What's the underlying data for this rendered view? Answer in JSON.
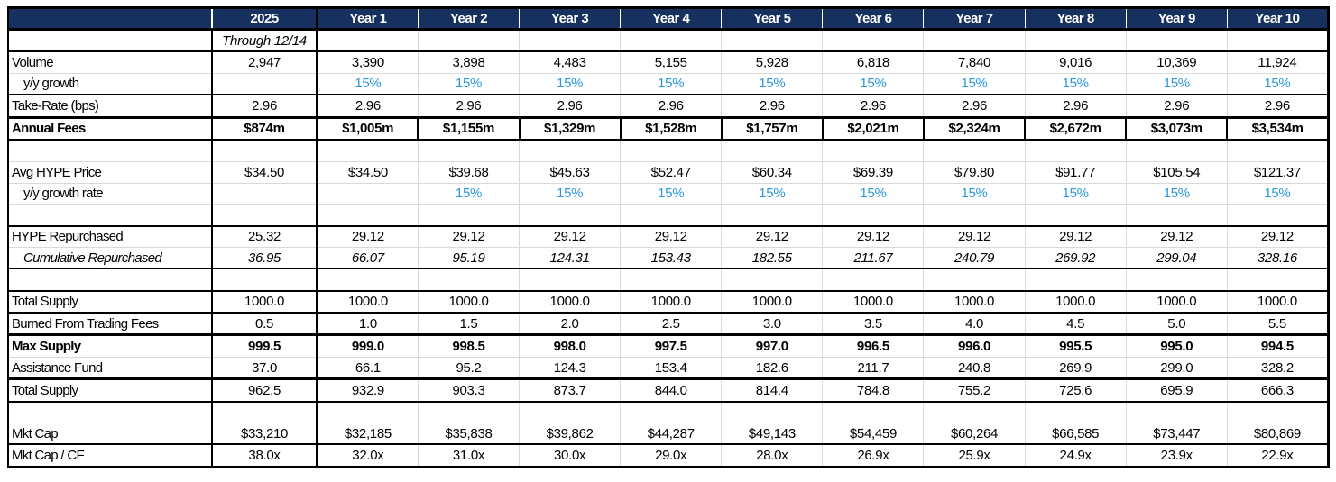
{
  "colors": {
    "header_bg": "#16305F",
    "header_text": "#FFFFFF",
    "growth_text": "#2B97E0",
    "grid_line": "#D9D9D9",
    "border": "#000000"
  },
  "table": {
    "header": [
      "",
      "2025",
      "Year 1",
      "Year 2",
      "Year 3",
      "Year 4",
      "Year 5",
      "Year 6",
      "Year 7",
      "Year 8",
      "Year 9",
      "Year 10"
    ],
    "rows": [
      {
        "name": "period-note",
        "label": "",
        "italic": true,
        "border_top": "thick",
        "values": [
          "Through 12/14",
          "",
          "",
          "",
          "",
          "",
          "",
          "",
          "",
          "",
          ""
        ]
      },
      {
        "name": "volume",
        "label": "Volume",
        "border_top": "thin",
        "values": [
          "2,947",
          "3,390",
          "3,898",
          "4,483",
          "5,155",
          "5,928",
          "6,818",
          "7,840",
          "9,016",
          "10,369",
          "11,924"
        ]
      },
      {
        "name": "yy-growth",
        "label": "y/y growth",
        "indent": true,
        "blue": true,
        "border_top": "gray",
        "values": [
          "",
          "15%",
          "15%",
          "15%",
          "15%",
          "15%",
          "15%",
          "15%",
          "15%",
          "15%",
          "15%"
        ]
      },
      {
        "name": "take-rate",
        "label": "Take-Rate (bps)",
        "border_top": "thin",
        "values": [
          "2.96",
          "2.96",
          "2.96",
          "2.96",
          "2.96",
          "2.96",
          "2.96",
          "2.96",
          "2.96",
          "2.96",
          "2.96"
        ]
      },
      {
        "name": "annual-fees",
        "label": "Annual Fees",
        "bold": true,
        "boxed": true,
        "border_top": "thick",
        "values": [
          "$874m",
          "$1,005m",
          "$1,155m",
          "$1,329m",
          "$1,528m",
          "$1,757m",
          "$2,021m",
          "$2,324m",
          "$2,672m",
          "$3,073m",
          "$3,534m"
        ]
      },
      {
        "name": "spacer-1",
        "label": "",
        "border_top": "thick",
        "values": [
          "",
          "",
          "",
          "",
          "",
          "",
          "",
          "",
          "",
          "",
          ""
        ]
      },
      {
        "name": "avg-hype-price",
        "label": "Avg HYPE Price",
        "border_top": "gray",
        "values": [
          "$34.50",
          "$34.50",
          "$39.68",
          "$45.63",
          "$52.47",
          "$60.34",
          "$69.39",
          "$79.80",
          "$91.77",
          "$105.54",
          "$121.37"
        ]
      },
      {
        "name": "yy-growth-rate",
        "label": "y/y growth rate",
        "indent": true,
        "blue": true,
        "border_top": "gray",
        "values": [
          "",
          "",
          "15%",
          "15%",
          "15%",
          "15%",
          "15%",
          "15%",
          "15%",
          "15%",
          "15%"
        ]
      },
      {
        "name": "spacer-2",
        "label": "",
        "border_top": "gray",
        "values": [
          "",
          "",
          "",
          "",
          "",
          "",
          "",
          "",
          "",
          "",
          ""
        ]
      },
      {
        "name": "hype-repurchased",
        "label": "HYPE Repurchased",
        "border_top": "thin",
        "values": [
          "25.32",
          "29.12",
          "29.12",
          "29.12",
          "29.12",
          "29.12",
          "29.12",
          "29.12",
          "29.12",
          "29.12",
          "29.12"
        ]
      },
      {
        "name": "cumulative-repurchased",
        "label": "Cumulative Repurchased",
        "indent": true,
        "italic": true,
        "italic_label": true,
        "border_top": "gray",
        "values": [
          "36.95",
          "66.07",
          "95.19",
          "124.31",
          "153.43",
          "182.55",
          "211.67",
          "240.79",
          "269.92",
          "299.04",
          "328.16"
        ]
      },
      {
        "name": "spacer-3",
        "label": "",
        "border_top": "thin",
        "values": [
          "",
          "",
          "",
          "",
          "",
          "",
          "",
          "",
          "",
          "",
          ""
        ]
      },
      {
        "name": "total-supply",
        "label": "Total Supply",
        "border_top": "thin",
        "values": [
          "1000.0",
          "1000.0",
          "1000.0",
          "1000.0",
          "1000.0",
          "1000.0",
          "1000.0",
          "1000.0",
          "1000.0",
          "1000.0",
          "1000.0"
        ]
      },
      {
        "name": "burned-from-trading-fees",
        "label": "Burned From Trading Fees",
        "border_top": "thin",
        "values": [
          "0.5",
          "1.0",
          "1.5",
          "2.0",
          "2.5",
          "3.0",
          "3.5",
          "4.0",
          "4.5",
          "5.0",
          "5.5"
        ]
      },
      {
        "name": "max-supply",
        "label": "Max Supply",
        "bold": true,
        "border_top": "thick",
        "values": [
          "999.5",
          "999.0",
          "998.5",
          "998.0",
          "997.5",
          "997.0",
          "996.5",
          "996.0",
          "995.5",
          "995.0",
          "994.5"
        ]
      },
      {
        "name": "assistance-fund",
        "label": "Assistance Fund",
        "border_top": "gray",
        "values": [
          "37.0",
          "66.1",
          "95.2",
          "124.3",
          "153.4",
          "182.6",
          "211.7",
          "240.8",
          "269.9",
          "299.0",
          "328.2"
        ]
      },
      {
        "name": "total-supply-net",
        "label": "Total Supply",
        "border_top": "thick",
        "values": [
          "962.5",
          "932.9",
          "903.3",
          "873.7",
          "844.0",
          "814.4",
          "784.8",
          "755.2",
          "725.6",
          "695.9",
          "666.3"
        ]
      },
      {
        "name": "spacer-4",
        "label": "",
        "border_top": "thin",
        "values": [
          "",
          "",
          "",
          "",
          "",
          "",
          "",
          "",
          "",
          "",
          ""
        ]
      },
      {
        "name": "mkt-cap",
        "label": "Mkt Cap",
        "border_top": "gray",
        "values": [
          "$33,210",
          "$32,185",
          "$35,838",
          "$39,862",
          "$44,287",
          "$49,143",
          "$54,459",
          "$60,264",
          "$66,585",
          "$73,447",
          "$80,869"
        ]
      },
      {
        "name": "mkt-cap-cf",
        "label": "Mkt Cap / CF",
        "border_top": "thin",
        "values": [
          "38.0x",
          "32.0x",
          "31.0x",
          "30.0x",
          "29.0x",
          "28.0x",
          "26.9x",
          "25.9x",
          "24.9x",
          "23.9x",
          "22.9x"
        ]
      }
    ]
  }
}
